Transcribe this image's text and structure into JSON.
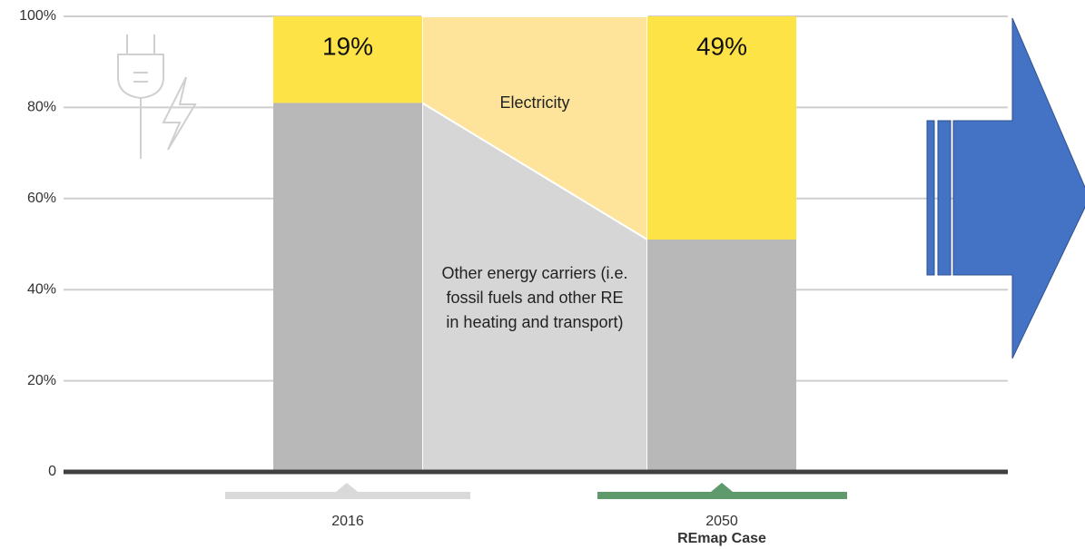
{
  "chart_data": {
    "type": "stacked_bar",
    "categories": [
      "2016",
      "2050"
    ],
    "category_sublabels": [
      null,
      "REmap Case"
    ],
    "series": [
      {
        "name": "Other energy carriers (i.e. fossil fuels and other RE in heating and transport)",
        "color": "#b8b8b8",
        "connector_color": "#d6d6d6",
        "values": [
          81,
          51
        ]
      },
      {
        "name": "Electricity",
        "color": "#fde345",
        "connector_color": "#fde49a",
        "values": [
          19,
          49
        ],
        "value_labels": [
          "19%",
          "49%"
        ]
      }
    ],
    "ylim": [
      0,
      100
    ],
    "yticks": [
      0,
      {
        "value": 20,
        "label": "20%"
      },
      {
        "value": 40,
        "label": "40%"
      },
      {
        "value": 60,
        "label": "60%"
      },
      {
        "value": 80,
        "label": "80%"
      },
      {
        "value": 100,
        "label": "100%"
      }
    ],
    "grid": true
  }
}
